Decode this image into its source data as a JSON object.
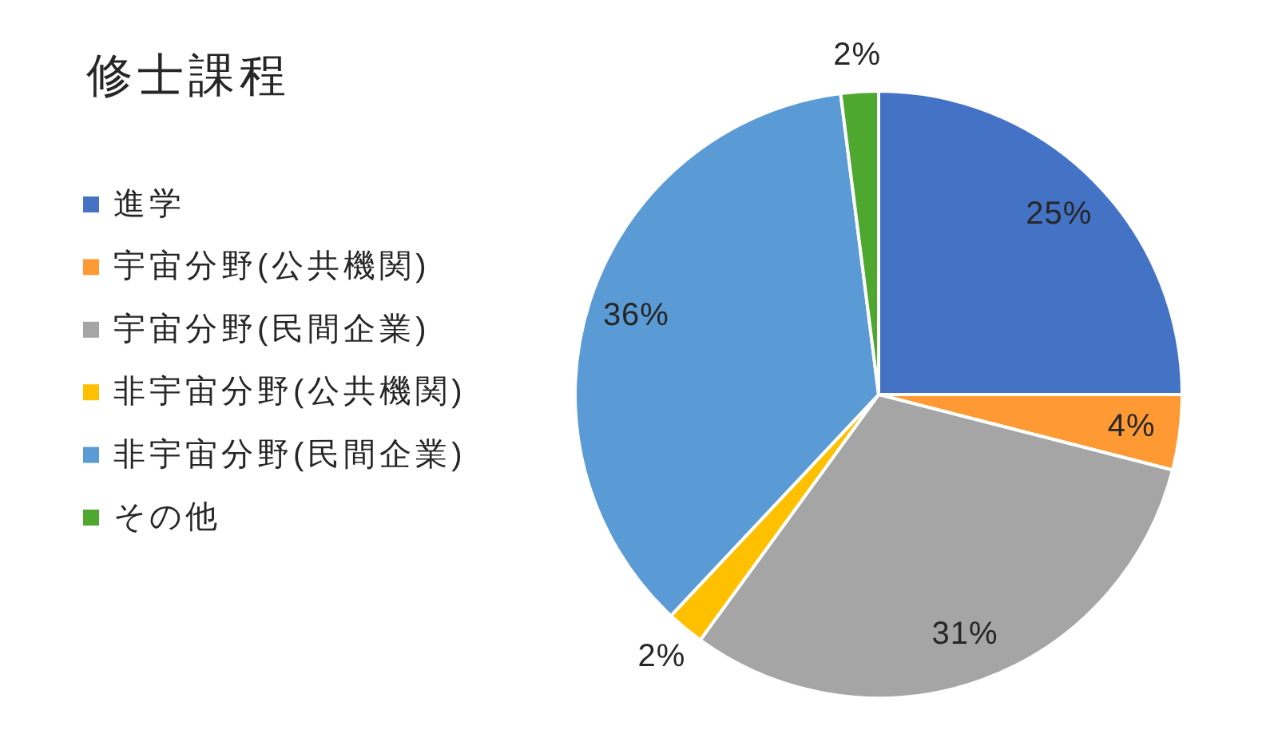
{
  "chart_data": {
    "type": "pie",
    "title": "修士課程",
    "categories": [
      "進学",
      "宇宙分野(公共機関)",
      "宇宙分野(民間企業)",
      "非宇宙分野(公共機関)",
      "非宇宙分野(民間企業)",
      "その他"
    ],
    "values": [
      25,
      4,
      31,
      2,
      36,
      2
    ],
    "colors": [
      "#4472c4",
      "#ff9933",
      "#a5a5a5",
      "#ffc000",
      "#5b9bd5",
      "#4ea72e"
    ],
    "value_labels": [
      "25%",
      "4%",
      "31%",
      "2%",
      "36%",
      "2%"
    ],
    "legend": "left"
  }
}
